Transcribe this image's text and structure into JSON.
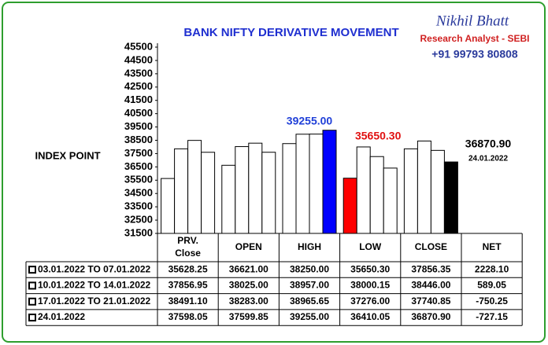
{
  "chart_data": {
    "type": "bar",
    "title": "BANK NIFTY DERIVATIVE MOVEMENT",
    "author": "Nikhil Bhatt",
    "author_role": "Research Analyst - SEBI",
    "phone": "+91 99793 80808",
    "y_label": "INDEX POINT",
    "categories": [
      "PRV. Close",
      "OPEN",
      "HIGH",
      "LOW",
      "CLOSE"
    ],
    "net_header": "NET",
    "ylim": [
      31500,
      45500
    ],
    "yticks": [
      31500,
      32500,
      33500,
      34500,
      35500,
      36500,
      37500,
      38500,
      39500,
      40500,
      41500,
      42500,
      43500,
      44500,
      45500
    ],
    "series": [
      {
        "name": "03.01.2022 TO 07.01.2022",
        "colors": [
          "#ffffff",
          "#ffffff",
          "#ffffff",
          "#ff0000",
          "#ffffff"
        ],
        "values": [
          35628.25,
          36621,
          38250,
          35650.3,
          37856.35
        ],
        "value_labels": [
          "35628.25",
          "36621.00",
          "38250.00",
          "35650.30",
          "37856.35"
        ],
        "net": 2228.1,
        "net_label": "2228.10"
      },
      {
        "name": "10.01.2022 TO 14.01.2022",
        "colors": [
          "#ffffff",
          "#ffffff",
          "#ffffff",
          "#ffffff",
          "#ffffff"
        ],
        "values": [
          37856.95,
          38025,
          38957,
          38000.15,
          38446
        ],
        "value_labels": [
          "37856.95",
          "38025.00",
          "38957.00",
          "38000.15",
          "38446.00"
        ],
        "net": 589.05,
        "net_label": "589.05"
      },
      {
        "name": "17.01.2022 TO 21.01.2022",
        "colors": [
          "#ffffff",
          "#ffffff",
          "#ffffff",
          "#ffffff",
          "#ffffff"
        ],
        "values": [
          38491.1,
          38283,
          38965.65,
          37276,
          37740.85
        ],
        "value_labels": [
          "38491.10",
          "38283.00",
          "38965.65",
          "37276.00",
          "37740.85"
        ],
        "net": -750.25,
        "net_label": "-750.25"
      },
      {
        "name": "24.01.2022",
        "colors": [
          "#ffffff",
          "#ffffff",
          "#0000ff",
          "#ffffff",
          "#000000"
        ],
        "values": [
          37598.05,
          37599.85,
          39255,
          36410.05,
          36870.9
        ],
        "value_labels": [
          "37598.05",
          "37599.85",
          "39255.00",
          "36410.05",
          "36870.90"
        ],
        "net": -727.15,
        "net_label": "-727.15"
      }
    ],
    "annotations": [
      {
        "text": "39255.00",
        "color": "#1f3fd8"
      },
      {
        "text": "35650.30",
        "color": "#e01010"
      },
      {
        "text": "36870.90",
        "color": "#000000"
      },
      {
        "text": "24.01.2022",
        "color": "#000000"
      }
    ]
  }
}
